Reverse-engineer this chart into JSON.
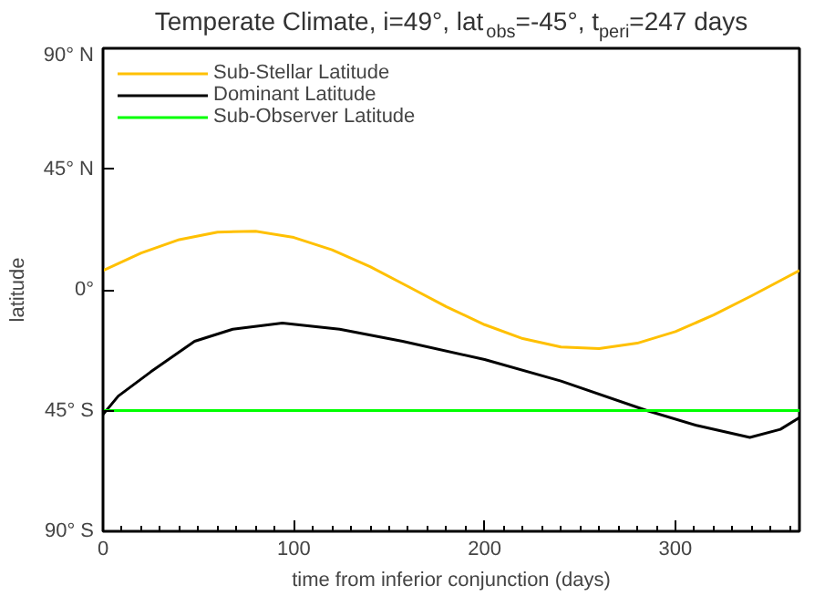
{
  "chart_data": {
    "type": "line",
    "title": "Temperate Climate, i=49°, lat$_{obs}$=-45°, t$_{peri}$=247 days",
    "xlabel": "time from inferior conjunction (days)",
    "ylabel": "latitude",
    "xlim": [
      0,
      365
    ],
    "xticks": [
      0,
      100,
      200,
      300
    ],
    "ylim": [
      -90,
      90
    ],
    "yticks": [
      {
        "value": -90,
        "label": "90° S"
      },
      {
        "value": -45,
        "label": "45° S"
      },
      {
        "value": 0,
        "label": "0°"
      },
      {
        "value": 45,
        "label": "45° N"
      },
      {
        "value": 90,
        "label": "90° N"
      }
    ],
    "grid": false,
    "legend": "top left",
    "line_style": "solid",
    "marker": "none",
    "series": [
      {
        "name": "Sub-Stellar Latitude",
        "color": "#ffc000",
        "x": [
          0,
          20,
          40,
          60,
          80,
          100,
          120,
          140,
          160,
          180,
          200,
          220,
          240,
          260,
          280,
          300,
          320,
          340,
          365
        ],
        "values": [
          7.2,
          13.7,
          18.7,
          21.5,
          21.8,
          19.5,
          14.9,
          8.6,
          1.2,
          -6.3,
          -13.0,
          -18.2,
          -21.3,
          -21.9,
          -19.9,
          -15.6,
          -9.4,
          -2.2,
          7.2
        ]
      },
      {
        "name": "Dominant Latitude",
        "color": "#000000",
        "x": [
          0,
          8,
          25,
          48,
          68,
          94,
          124,
          157,
          200,
          240,
          285,
          311,
          339,
          355,
          365
        ],
        "values": [
          -46.5,
          -39.6,
          -30.6,
          -19.2,
          -14.7,
          -12.4,
          -14.7,
          -19.2,
          -26,
          -34,
          -45,
          -50.5,
          -55,
          -52,
          -47.6
        ]
      },
      {
        "name": "Sub-Observer Latitude",
        "color": "#00ff00",
        "x": [
          0,
          365
        ],
        "values": [
          -45,
          -45
        ]
      }
    ]
  }
}
